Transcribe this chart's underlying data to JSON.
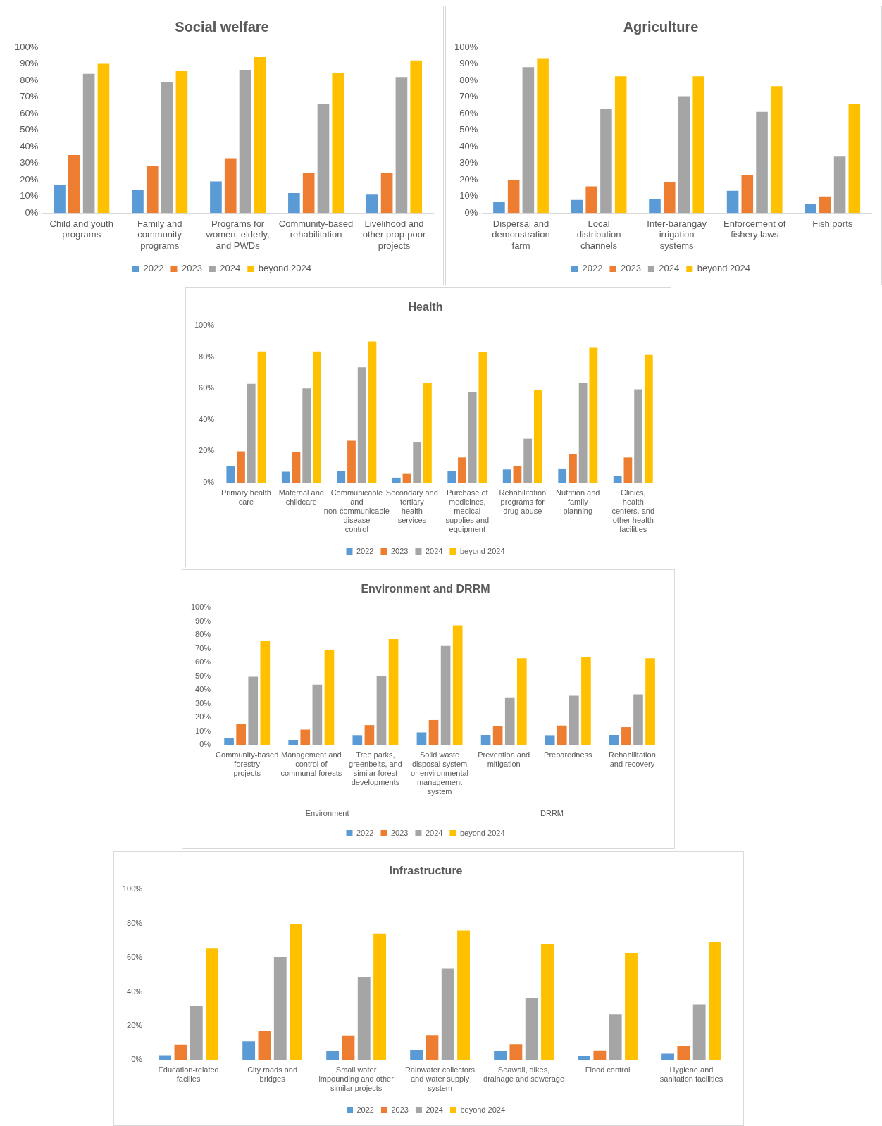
{
  "chart_data": [
    {
      "type": "bar",
      "title": "Social welfare",
      "categories": [
        "Child and youth programs",
        "Family and community programs",
        "Programs for women, elderly, and PWDs",
        "Community-based rehabilitation",
        "Livelihood and other prop-poor projects"
      ],
      "series": [
        {
          "name": "2022",
          "color": "#5b9bd5",
          "values": [
            17,
            14,
            19,
            12,
            11
          ]
        },
        {
          "name": "2023",
          "color": "#ed7d31",
          "values": [
            35,
            28.5,
            33,
            24,
            24
          ]
        },
        {
          "name": "2024",
          "color": "#a5a5a5",
          "values": [
            84,
            79,
            86,
            66,
            82
          ]
        },
        {
          "name": "beyond 2024",
          "color": "#ffc000",
          "values": [
            90,
            85.5,
            94,
            84.5,
            92
          ]
        }
      ],
      "ylim": [
        0,
        100
      ],
      "yticks": [
        {
          "value": 0,
          "label": "0%"
        },
        {
          "value": 10,
          "label": "10%"
        },
        {
          "value": 20,
          "label": "20%"
        },
        {
          "value": 30,
          "label": "30%"
        },
        {
          "value": 40,
          "label": "40%"
        },
        {
          "value": 50,
          "label": "50%"
        },
        {
          "value": 60,
          "label": "60%"
        },
        {
          "value": 70,
          "label": "70%"
        },
        {
          "value": 80,
          "label": "80%"
        },
        {
          "value": 90,
          "label": "90%"
        },
        {
          "value": 100,
          "label": "100%"
        }
      ],
      "legend": "bottom"
    },
    {
      "type": "bar",
      "title": "Agriculture",
      "categories": [
        "Dispersal and demonstration farm",
        "Local distribution channels",
        "Inter-barangay irrigation systems",
        "Enforcement of fishery laws",
        "Fish ports"
      ],
      "series": [
        {
          "name": "2022",
          "color": "#5b9bd5",
          "values": [
            6.6,
            7.8,
            8.5,
            13.4,
            5.6
          ]
        },
        {
          "name": "2023",
          "color": "#ed7d31",
          "values": [
            20,
            16,
            18.5,
            23,
            10
          ]
        },
        {
          "name": "2024",
          "color": "#a5a5a5",
          "values": [
            88,
            63,
            70.5,
            61,
            34
          ]
        },
        {
          "name": "beyond 2024",
          "color": "#ffc000",
          "values": [
            93,
            82.5,
            82.5,
            76.5,
            66
          ]
        }
      ],
      "ylim": [
        0,
        100
      ],
      "yticks": [
        {
          "value": 0,
          "label": "0%"
        },
        {
          "value": 10,
          "label": "10%"
        },
        {
          "value": 20,
          "label": "20%"
        },
        {
          "value": 30,
          "label": "30%"
        },
        {
          "value": 40,
          "label": "40%"
        },
        {
          "value": 50,
          "label": "50%"
        },
        {
          "value": 60,
          "label": "60%"
        },
        {
          "value": 70,
          "label": "70%"
        },
        {
          "value": 80,
          "label": "80%"
        },
        {
          "value": 90,
          "label": "90%"
        },
        {
          "value": 100,
          "label": "100%"
        }
      ],
      "legend": "bottom"
    },
    {
      "type": "bar",
      "title": "Health",
      "categories": [
        "Primary health care",
        "Maternal and childcare",
        "Communicable and non-communicable disease control",
        "Secondary and tertiary health services",
        "Purchase of medicines, medical supplies and equipment",
        "Rehabilitation programs for drug abuse",
        "Nutrition and family planning",
        "Clinics, health centers, and other health facilities"
      ],
      "series": [
        {
          "name": "2022",
          "color": "#5b9bd5",
          "values": [
            10.5,
            7,
            7.4,
            3.2,
            7.4,
            8.4,
            9,
            4.4
          ]
        },
        {
          "name": "2023",
          "color": "#ed7d31",
          "values": [
            20,
            19.3,
            26.7,
            6,
            16,
            10.5,
            18.3,
            16
          ]
        },
        {
          "name": "2024",
          "color": "#a5a5a5",
          "values": [
            63,
            60,
            73.5,
            26,
            57.6,
            28,
            63.4,
            59.5
          ]
        },
        {
          "name": "beyond 2024",
          "color": "#ffc000",
          "values": [
            83.6,
            83.6,
            90,
            63.5,
            83,
            59,
            86,
            81.3
          ]
        }
      ],
      "ylim": [
        0,
        100
      ],
      "yticks": [
        {
          "value": 0,
          "label": "0%"
        },
        {
          "value": 20,
          "label": "20%"
        },
        {
          "value": 40,
          "label": "40%"
        },
        {
          "value": 60,
          "label": "60%"
        },
        {
          "value": 80,
          "label": "80%"
        },
        {
          "value": 100,
          "label": "100%"
        }
      ],
      "legend": "bottom"
    },
    {
      "type": "bar",
      "title": "Environment and DRRM",
      "categories": [
        "Community-based forestry projects",
        "Management and control of communal forests",
        "Tree parks, greenbelts, and similar forest developments",
        "Solid waste disposal system or environmental management system",
        "Prevention and mitigation",
        "Preparedness",
        "Rehabilitation and recovery"
      ],
      "series": [
        {
          "name": "2022",
          "color": "#5b9bd5",
          "values": [
            5,
            3.6,
            7,
            9,
            7.2,
            7,
            7.2
          ]
        },
        {
          "name": "2023",
          "color": "#ed7d31",
          "values": [
            15.2,
            11,
            14.3,
            18,
            13.5,
            14,
            12.8
          ]
        },
        {
          "name": "2024",
          "color": "#a5a5a5",
          "values": [
            49.5,
            43.7,
            50,
            72,
            34.5,
            35.7,
            36.7
          ]
        },
        {
          "name": "beyond 2024",
          "color": "#ffc000",
          "values": [
            76,
            69,
            77,
            87,
            63,
            64,
            63
          ]
        }
      ],
      "ylim": [
        0,
        100
      ],
      "yticks": [
        {
          "value": 0,
          "label": "0%"
        },
        {
          "value": 10,
          "label": "10%"
        },
        {
          "value": 20,
          "label": "20%"
        },
        {
          "value": 30,
          "label": "30%"
        },
        {
          "value": 40,
          "label": "40%"
        },
        {
          "value": 50,
          "label": "50%"
        },
        {
          "value": 60,
          "label": "60%"
        },
        {
          "value": 70,
          "label": "70%"
        },
        {
          "value": 80,
          "label": "80%"
        },
        {
          "value": 90,
          "label": "90%"
        },
        {
          "value": 100,
          "label": "100%"
        }
      ],
      "legend": "bottom",
      "annotations": [
        "Environment",
        "DRRM"
      ]
    },
    {
      "type": "bar",
      "title": "Infrastructure",
      "categories": [
        "Education-related facilies",
        "City roads and bridges",
        "Small water impounding and other similar projects",
        "Rainwater collectors and water supply system",
        "Seawall, dikes, drainage and sewerage",
        "Flood control",
        "Hygiene and sanitation facilities"
      ],
      "series": [
        {
          "name": "2022",
          "color": "#5b9bd5",
          "values": [
            2.8,
            10.8,
            5.2,
            5.9,
            5.2,
            2.6,
            3.7
          ]
        },
        {
          "name": "2023",
          "color": "#ed7d31",
          "values": [
            8.9,
            17.1,
            14.3,
            14.5,
            9.1,
            5.6,
            8.2
          ]
        },
        {
          "name": "2024",
          "color": "#a5a5a5",
          "values": [
            31.9,
            60.4,
            48.7,
            53.6,
            36.5,
            26.9,
            32.6
          ]
        },
        {
          "name": "beyond 2024",
          "color": "#ffc000",
          "values": [
            65.3,
            79.6,
            74.2,
            75.9,
            67.9,
            62.8,
            69.1
          ]
        }
      ],
      "ylim": [
        0,
        100
      ],
      "yticks": [
        {
          "value": 0,
          "label": "0%"
        },
        {
          "value": 20,
          "label": "20%"
        },
        {
          "value": 40,
          "label": "40%"
        },
        {
          "value": 60,
          "label": "60%"
        },
        {
          "value": 80,
          "label": "80%"
        },
        {
          "value": 100,
          "label": "100%"
        }
      ],
      "legend": "bottom"
    }
  ]
}
